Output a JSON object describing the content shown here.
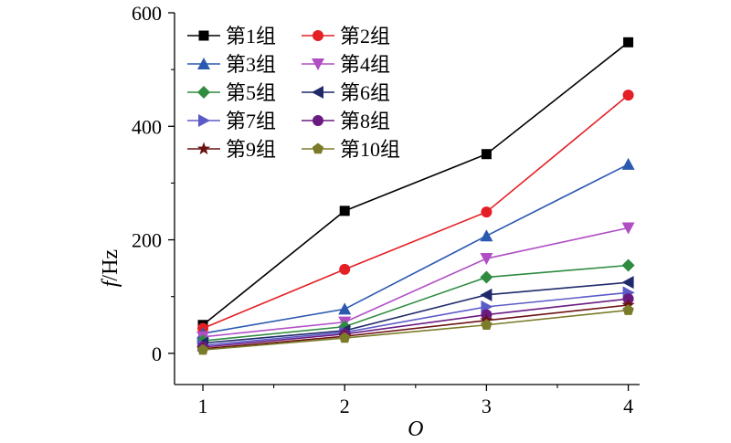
{
  "chart_data": {
    "type": "line",
    "title": "",
    "xlabel": "O",
    "ylabel_italic": "f",
    "ylabel_unit": "/Hz",
    "x": [
      1,
      2,
      3,
      4
    ],
    "xlim": [
      0.8,
      4.08
    ],
    "ylim": [
      -55,
      600
    ],
    "xticks": [
      1,
      2,
      3,
      4
    ],
    "yticks": [
      0,
      200,
      400,
      600
    ],
    "grid": false,
    "legend_position": "top-left",
    "series": [
      {
        "name": "第1组",
        "color": "#000000",
        "marker": "square",
        "values": [
          50,
          251,
          351,
          548
        ]
      },
      {
        "name": "第2组",
        "color": "#e41f26",
        "marker": "circle",
        "values": [
          44,
          148,
          249,
          455
        ]
      },
      {
        "name": "第3组",
        "color": "#2c59b0",
        "marker": "triangle-up",
        "values": [
          35,
          78,
          207,
          333
        ]
      },
      {
        "name": "第4组",
        "color": "#b04ec4",
        "marker": "triangle-down",
        "values": [
          29,
          55,
          167,
          221
        ]
      },
      {
        "name": "第5组",
        "color": "#2f8b3f",
        "marker": "diamond",
        "values": [
          22,
          47,
          134,
          155
        ]
      },
      {
        "name": "第6组",
        "color": "#1f2a6b",
        "marker": "triangle-left",
        "values": [
          18,
          40,
          103,
          125
        ]
      },
      {
        "name": "第7组",
        "color": "#5b5bc7",
        "marker": "triangle-right",
        "values": [
          14,
          37,
          82,
          107
        ]
      },
      {
        "name": "第8组",
        "color": "#6a1b82",
        "marker": "circle",
        "values": [
          11,
          34,
          68,
          96
        ]
      },
      {
        "name": "第9组",
        "color": "#6b1212",
        "marker": "star",
        "values": [
          8,
          30,
          58,
          85
        ]
      },
      {
        "name": "第10组",
        "color": "#7b7b2a",
        "marker": "pentagon",
        "values": [
          6,
          27,
          50,
          76
        ]
      }
    ]
  }
}
